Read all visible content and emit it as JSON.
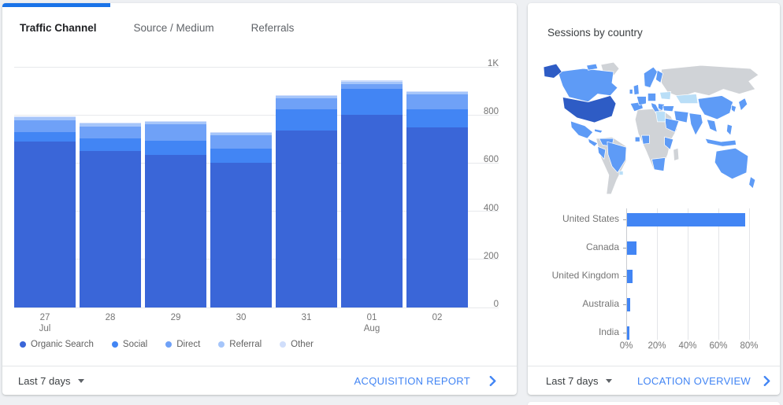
{
  "page": {
    "background_color": "#eef0f3",
    "accent_color": "#1a73e8"
  },
  "left_card": {
    "tabs": [
      {
        "label": "Traffic Channel",
        "active": true
      },
      {
        "label": "Source / Medium",
        "active": false
      },
      {
        "label": "Referrals",
        "active": false
      }
    ],
    "footer": {
      "date_range": "Last 7 days",
      "link": "ACQUISITION REPORT"
    }
  },
  "right_card": {
    "title": "Sessions by country",
    "map": {
      "base_color": "#d0d3d7",
      "highlight_color": "#5e9bf6",
      "dark_highlight_color": "#2e5cc5",
      "light_highlight_color": "#b9def7"
    },
    "footer": {
      "date_range": "Last 7 days",
      "link": "LOCATION OVERVIEW"
    }
  },
  "chart_data": [
    {
      "id": "traffic-by-channel",
      "type": "bar",
      "stacked": true,
      "grid": true,
      "legend_position": "bottom",
      "categories": [
        "27 Jul",
        "28",
        "29",
        "30",
        "31",
        "01 Aug",
        "02"
      ],
      "x_tick_lines": [
        [
          "27",
          "Jul"
        ],
        [
          "28",
          ""
        ],
        [
          "29",
          ""
        ],
        [
          "30",
          ""
        ],
        [
          "31",
          ""
        ],
        [
          "01",
          "Aug"
        ],
        [
          "02",
          ""
        ]
      ],
      "series": [
        {
          "name": "Organic Search",
          "color": "#3a66d8",
          "values": [
            690,
            650,
            635,
            600,
            735,
            800,
            748
          ]
        },
        {
          "name": "Social",
          "color": "#4285f4",
          "values": [
            38,
            54,
            57,
            60,
            87,
            108,
            76
          ]
        },
        {
          "name": "Direct",
          "color": "#6fa1f7",
          "values": [
            50,
            47,
            68,
            57,
            48,
            20,
            62
          ]
        },
        {
          "name": "Referral",
          "color": "#a5c5fa",
          "values": [
            14,
            14,
            13,
            11,
            9,
            11,
            9
          ]
        },
        {
          "name": "Other",
          "color": "#d0defb",
          "values": [
            3,
            3,
            3,
            2,
            3,
            4,
            3
          ]
        }
      ],
      "ylim": [
        0,
        1000
      ],
      "y_ticks": [
        {
          "value": 1000,
          "label": "1K"
        },
        {
          "value": 800,
          "label": "800"
        },
        {
          "value": 600,
          "label": "600"
        },
        {
          "value": 400,
          "label": "400"
        },
        {
          "value": 200,
          "label": "200"
        },
        {
          "value": 0,
          "label": "0"
        }
      ]
    },
    {
      "id": "sessions-by-country",
      "type": "bar",
      "orientation": "horizontal",
      "grid": true,
      "unit": "%",
      "bar_color": "#4285f4",
      "categories": [
        "United States",
        "Canada",
        "United Kingdom",
        "Australia",
        "India"
      ],
      "values": [
        77,
        6.3,
        3.7,
        2,
        1.7
      ],
      "xlim": [
        0,
        80
      ],
      "x_ticks": [
        {
          "value": 0,
          "label": "0%"
        },
        {
          "value": 20,
          "label": "20%"
        },
        {
          "value": 40,
          "label": "40%"
        },
        {
          "value": 60,
          "label": "60%"
        },
        {
          "value": 80,
          "label": "80%"
        }
      ]
    }
  ]
}
